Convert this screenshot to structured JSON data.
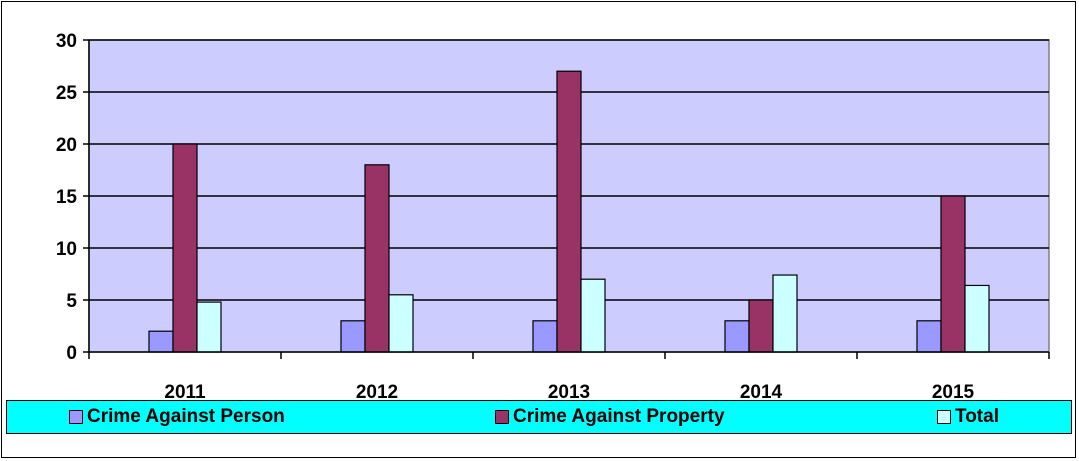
{
  "chart_data": {
    "type": "bar",
    "categories": [
      "2011",
      "2012",
      "2013",
      "2014",
      "2015"
    ],
    "series": [
      {
        "name": "Crime Against Person",
        "values": [
          2,
          3,
          3,
          3,
          3
        ],
        "color": "#9999ff"
      },
      {
        "name": "Crime Against Property",
        "values": [
          20,
          18,
          27,
          5,
          15
        ],
        "color": "#993366"
      },
      {
        "name": "Total",
        "values": [
          4.8,
          5.5,
          7,
          7.4,
          6.4
        ],
        "color": "#ccffff"
      }
    ],
    "y_ticks": [
      "0",
      "5",
      "10",
      "15",
      "20",
      "25",
      "30"
    ],
    "ylim": [
      0,
      30
    ],
    "grid": true,
    "legend_position": "bottom",
    "plot_background": "#ccccff",
    "legend_background": "#00ffff"
  }
}
